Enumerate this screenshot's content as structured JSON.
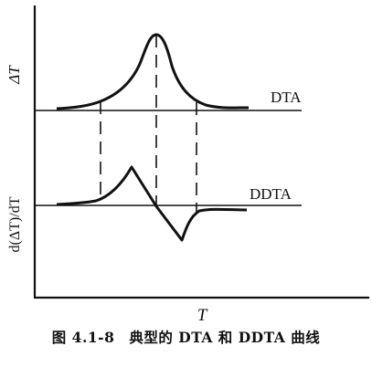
{
  "figure": {
    "y_axis_top_label": "ΔT",
    "y_axis_bottom_label": "d(ΔT)/dT",
    "x_axis_label": "T",
    "curves": [
      {
        "label": "DTA"
      },
      {
        "label": "DDTA"
      }
    ],
    "caption": "图 4.1-8　典型的 DTA 和 DDTA 曲线"
  }
}
